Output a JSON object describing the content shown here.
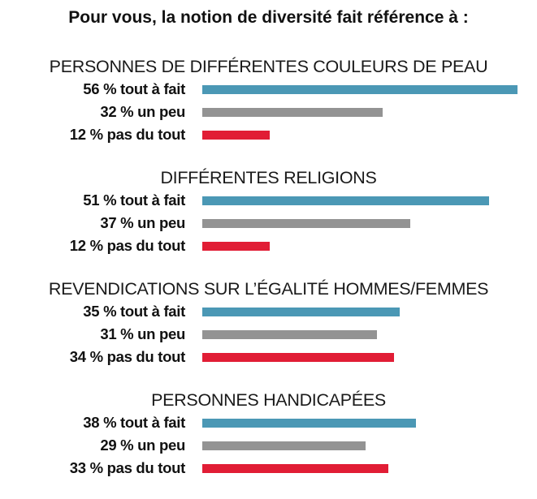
{
  "chart_data": {
    "type": "bar",
    "orientation": "horizontal",
    "title": "Pour vous, la notion de diversité fait référence à :",
    "xlim": [
      0,
      56
    ],
    "grid": false,
    "colors": {
      "tout à fait": "#4b98b5",
      "un peu": "#939393",
      "pas du tout": "#e11d35"
    },
    "groups": [
      {
        "label": "PERSONNES DE DIFFÉRENTES COULEURS DE PEAU",
        "rows": [
          {
            "text": "56 % tout à fait",
            "category": "tout à fait",
            "value": 56
          },
          {
            "text": "32 % un peu",
            "category": "un peu",
            "value": 32
          },
          {
            "text": "12 % pas du tout",
            "category": "pas du tout",
            "value": 12
          }
        ]
      },
      {
        "label": "DIFFÉRENTES RELIGIONS",
        "rows": [
          {
            "text": "51 % tout à fait",
            "category": "tout à fait",
            "value": 51
          },
          {
            "text": "37 % un peu",
            "category": "un peu",
            "value": 37
          },
          {
            "text": "12 % pas du tout",
            "category": "pas du tout",
            "value": 12
          }
        ]
      },
      {
        "label": "REVENDICATIONS SUR L’ÉGALITÉ HOMMES/FEMMES",
        "rows": [
          {
            "text": "35 % tout à fait",
            "category": "tout à fait",
            "value": 35
          },
          {
            "text": "31 % un peu",
            "category": "un peu",
            "value": 31
          },
          {
            "text": "34 % pas du tout",
            "category": "pas du tout",
            "value": 34
          }
        ]
      },
      {
        "label": "PERSONNES HANDICAPÉES",
        "rows": [
          {
            "text": "38 % tout à fait",
            "category": "tout à fait",
            "value": 38
          },
          {
            "text": "29 % un peu",
            "category": "un peu",
            "value": 29
          },
          {
            "text": "33 % pas du tout",
            "category": "pas du tout",
            "value": 33
          }
        ]
      }
    ]
  }
}
